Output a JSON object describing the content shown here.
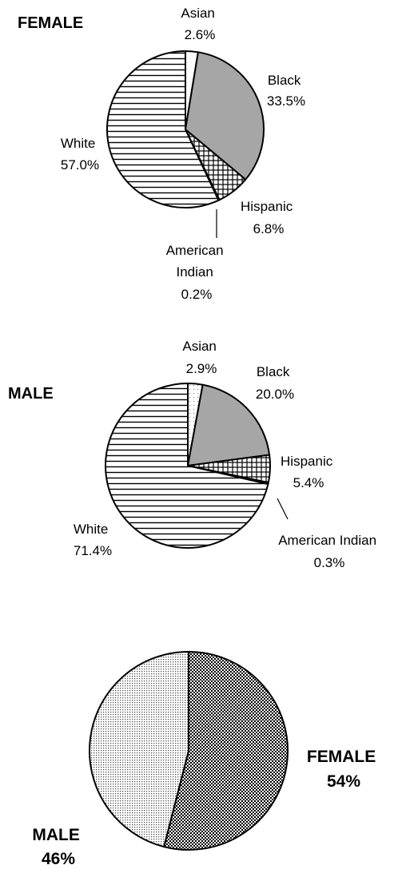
{
  "chart_data": [
    {
      "type": "pie",
      "title": "FEMALE",
      "categories": [
        "Asian",
        "Black",
        "Hispanic",
        "American Indian",
        "White"
      ],
      "values": [
        2.6,
        33.5,
        6.8,
        0.2,
        57.0
      ],
      "labels": {
        "asian": [
          "Asian",
          "2.6%"
        ],
        "black": [
          "Black",
          "33.5%"
        ],
        "hispanic": [
          "Hispanic",
          "6.8%"
        ],
        "american_indian": [
          "American",
          "Indian",
          "0.2%"
        ],
        "white": [
          "White",
          "57.0%"
        ]
      }
    },
    {
      "type": "pie",
      "title": "MALE",
      "categories": [
        "Asian",
        "Black",
        "Hispanic",
        "American Indian",
        "White"
      ],
      "values": [
        2.9,
        20.0,
        5.4,
        0.3,
        71.4
      ],
      "labels": {
        "asian": [
          "Asian",
          "2.9%"
        ],
        "black": [
          "Black",
          "20.0%"
        ],
        "hispanic": [
          "Hispanic",
          "5.4%"
        ],
        "american_indian": [
          "American Indian",
          "0.3%"
        ],
        "white": [
          "White",
          "71.4%"
        ]
      }
    },
    {
      "type": "pie",
      "categories": [
        "FEMALE",
        "MALE"
      ],
      "values": [
        54,
        46
      ],
      "labels": {
        "female": [
          "FEMALE",
          "54%"
        ],
        "male": [
          "MALE",
          "46%"
        ]
      }
    }
  ]
}
